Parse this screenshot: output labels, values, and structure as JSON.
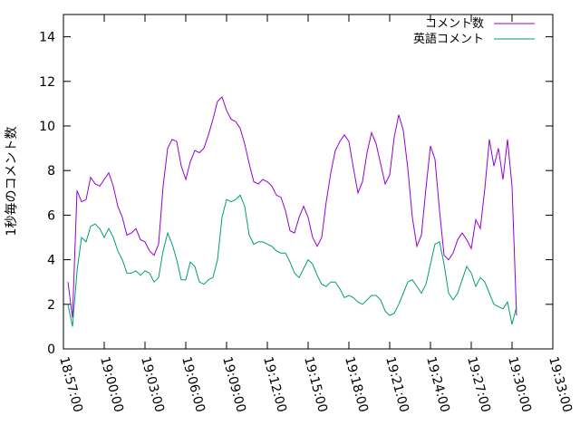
{
  "chart_data": {
    "type": "line",
    "ylabel": "1秒毎のコメント数",
    "xlabel": "",
    "ylim": [
      0,
      15
    ],
    "xlim": [
      "18:57:00",
      "19:33:00"
    ],
    "yticks": [
      0,
      2,
      4,
      6,
      8,
      10,
      12,
      14
    ],
    "xticks": [
      "18:57:00",
      "19:00:00",
      "19:03:00",
      "19:06:00",
      "19:09:00",
      "19:12:00",
      "19:15:00",
      "19:18:00",
      "19:21:00",
      "19:24:00",
      "19:27:00",
      "19:30:00",
      "19:33:00"
    ],
    "legend_position": "top-right",
    "grid": false,
    "series": [
      {
        "name": "コメント数",
        "color": "#9400d3",
        "points": [
          [
            "18:57:20",
            3.0
          ],
          [
            "18:57:40",
            1.4
          ],
          [
            "18:58:00",
            7.1
          ],
          [
            "18:58:20",
            6.6
          ],
          [
            "18:58:40",
            6.7
          ],
          [
            "18:59:00",
            7.7
          ],
          [
            "18:59:20",
            7.4
          ],
          [
            "18:59:40",
            7.3
          ],
          [
            "19:00:00",
            7.6
          ],
          [
            "19:00:20",
            7.9
          ],
          [
            "19:00:40",
            7.3
          ],
          [
            "19:01:00",
            6.4
          ],
          [
            "19:01:20",
            5.9
          ],
          [
            "19:01:40",
            5.1
          ],
          [
            "19:02:00",
            5.2
          ],
          [
            "19:02:20",
            5.4
          ],
          [
            "19:02:40",
            4.9
          ],
          [
            "19:03:00",
            4.8
          ],
          [
            "19:03:20",
            4.4
          ],
          [
            "19:03:40",
            4.2
          ],
          [
            "19:04:00",
            4.7
          ],
          [
            "19:04:20",
            7.3
          ],
          [
            "19:04:40",
            9.0
          ],
          [
            "19:05:00",
            9.4
          ],
          [
            "19:05:20",
            9.3
          ],
          [
            "19:05:40",
            8.2
          ],
          [
            "19:06:00",
            7.6
          ],
          [
            "19:06:20",
            8.4
          ],
          [
            "19:06:40",
            8.9
          ],
          [
            "19:07:00",
            8.8
          ],
          [
            "19:07:20",
            9.0
          ],
          [
            "19:07:40",
            9.6
          ],
          [
            "19:08:00",
            10.3
          ],
          [
            "19:08:20",
            11.1
          ],
          [
            "19:08:40",
            11.3
          ],
          [
            "19:09:00",
            10.7
          ],
          [
            "19:09:20",
            10.3
          ],
          [
            "19:09:40",
            10.2
          ],
          [
            "19:10:00",
            9.9
          ],
          [
            "19:10:20",
            9.2
          ],
          [
            "19:10:40",
            8.3
          ],
          [
            "19:11:00",
            7.5
          ],
          [
            "19:11:20",
            7.4
          ],
          [
            "19:11:40",
            7.6
          ],
          [
            "19:12:00",
            7.5
          ],
          [
            "19:12:20",
            7.3
          ],
          [
            "19:12:40",
            6.9
          ],
          [
            "19:13:00",
            6.8
          ],
          [
            "19:13:20",
            6.2
          ],
          [
            "19:13:40",
            5.3
          ],
          [
            "19:14:00",
            5.2
          ],
          [
            "19:14:20",
            5.9
          ],
          [
            "19:14:40",
            6.4
          ],
          [
            "19:15:00",
            5.9
          ],
          [
            "19:15:20",
            5.0
          ],
          [
            "19:15:40",
            4.6
          ],
          [
            "19:16:00",
            5.0
          ],
          [
            "19:16:20",
            6.6
          ],
          [
            "19:16:40",
            7.9
          ],
          [
            "19:17:00",
            8.9
          ],
          [
            "19:17:20",
            9.3
          ],
          [
            "19:17:40",
            9.6
          ],
          [
            "19:18:00",
            9.3
          ],
          [
            "19:18:20",
            8.1
          ],
          [
            "19:18:40",
            7.0
          ],
          [
            "19:19:00",
            7.5
          ],
          [
            "19:19:20",
            8.8
          ],
          [
            "19:19:40",
            9.7
          ],
          [
            "19:20:00",
            9.2
          ],
          [
            "19:20:20",
            8.3
          ],
          [
            "19:20:40",
            7.4
          ],
          [
            "19:21:00",
            7.8
          ],
          [
            "19:21:20",
            9.5
          ],
          [
            "19:21:40",
            10.5
          ],
          [
            "19:22:00",
            9.8
          ],
          [
            "19:22:20",
            8.1
          ],
          [
            "19:22:40",
            5.9
          ],
          [
            "19:23:00",
            4.6
          ],
          [
            "19:23:20",
            5.1
          ],
          [
            "19:23:40",
            7.2
          ],
          [
            "19:24:00",
            9.1
          ],
          [
            "19:24:20",
            8.5
          ],
          [
            "19:24:40",
            6.2
          ],
          [
            "19:25:00",
            4.2
          ],
          [
            "19:25:20",
            4.0
          ],
          [
            "19:25:40",
            4.3
          ],
          [
            "19:26:00",
            4.9
          ],
          [
            "19:26:20",
            5.2
          ],
          [
            "19:26:40",
            4.9
          ],
          [
            "19:27:00",
            4.5
          ],
          [
            "19:27:20",
            5.8
          ],
          [
            "19:27:40",
            5.4
          ],
          [
            "19:28:00",
            7.2
          ],
          [
            "19:28:20",
            9.4
          ],
          [
            "19:28:40",
            8.2
          ],
          [
            "19:29:00",
            9.0
          ],
          [
            "19:29:20",
            7.6
          ],
          [
            "19:29:40",
            9.4
          ],
          [
            "19:30:00",
            7.3
          ],
          [
            "19:30:20",
            1.5
          ]
        ]
      },
      {
        "name": "英語コメント",
        "color": "#009e73",
        "points": [
          [
            "18:57:20",
            2.0
          ],
          [
            "18:57:40",
            1.0
          ],
          [
            "18:58:00",
            3.5
          ],
          [
            "18:58:20",
            5.0
          ],
          [
            "18:58:40",
            4.8
          ],
          [
            "18:59:00",
            5.5
          ],
          [
            "18:59:20",
            5.6
          ],
          [
            "18:59:40",
            5.4
          ],
          [
            "19:00:00",
            5.0
          ],
          [
            "19:00:20",
            5.4
          ],
          [
            "19:00:40",
            5.0
          ],
          [
            "19:01:00",
            4.4
          ],
          [
            "19:01:20",
            4.0
          ],
          [
            "19:01:40",
            3.4
          ],
          [
            "19:02:00",
            3.4
          ],
          [
            "19:02:20",
            3.5
          ],
          [
            "19:02:40",
            3.3
          ],
          [
            "19:03:00",
            3.5
          ],
          [
            "19:03:20",
            3.4
          ],
          [
            "19:03:40",
            3.0
          ],
          [
            "19:04:00",
            3.2
          ],
          [
            "19:04:20",
            4.4
          ],
          [
            "19:04:40",
            5.2
          ],
          [
            "19:05:00",
            4.7
          ],
          [
            "19:05:20",
            4.0
          ],
          [
            "19:05:40",
            3.1
          ],
          [
            "19:06:00",
            3.1
          ],
          [
            "19:06:20",
            3.9
          ],
          [
            "19:06:40",
            3.7
          ],
          [
            "19:07:00",
            3.0
          ],
          [
            "19:07:20",
            2.9
          ],
          [
            "19:07:40",
            3.1
          ],
          [
            "19:08:00",
            3.2
          ],
          [
            "19:08:20",
            4.0
          ],
          [
            "19:08:40",
            5.9
          ],
          [
            "19:09:00",
            6.7
          ],
          [
            "19:09:20",
            6.6
          ],
          [
            "19:09:40",
            6.7
          ],
          [
            "19:10:00",
            6.9
          ],
          [
            "19:10:20",
            6.4
          ],
          [
            "19:10:40",
            5.1
          ],
          [
            "19:11:00",
            4.7
          ],
          [
            "19:11:20",
            4.8
          ],
          [
            "19:11:40",
            4.8
          ],
          [
            "19:12:00",
            4.7
          ],
          [
            "19:12:20",
            4.6
          ],
          [
            "19:12:40",
            4.4
          ],
          [
            "19:13:00",
            4.3
          ],
          [
            "19:13:20",
            4.3
          ],
          [
            "19:13:40",
            3.9
          ],
          [
            "19:14:00",
            3.4
          ],
          [
            "19:14:20",
            3.2
          ],
          [
            "19:14:40",
            3.6
          ],
          [
            "19:15:00",
            4.0
          ],
          [
            "19:15:20",
            3.8
          ],
          [
            "19:15:40",
            3.3
          ],
          [
            "19:16:00",
            2.9
          ],
          [
            "19:16:20",
            2.8
          ],
          [
            "19:16:40",
            3.0
          ],
          [
            "19:17:00",
            3.0
          ],
          [
            "19:17:20",
            2.7
          ],
          [
            "19:17:40",
            2.3
          ],
          [
            "19:18:00",
            2.4
          ],
          [
            "19:18:20",
            2.3
          ],
          [
            "19:18:40",
            2.1
          ],
          [
            "19:19:00",
            2.0
          ],
          [
            "19:19:20",
            2.2
          ],
          [
            "19:19:40",
            2.4
          ],
          [
            "19:20:00",
            2.4
          ],
          [
            "19:20:20",
            2.2
          ],
          [
            "19:20:40",
            1.7
          ],
          [
            "19:21:00",
            1.5
          ],
          [
            "19:21:20",
            1.6
          ],
          [
            "19:21:40",
            2.0
          ],
          [
            "19:22:00",
            2.5
          ],
          [
            "19:22:20",
            3.0
          ],
          [
            "19:22:40",
            3.1
          ],
          [
            "19:23:00",
            2.8
          ],
          [
            "19:23:20",
            2.5
          ],
          [
            "19:23:40",
            2.9
          ],
          [
            "19:24:00",
            3.8
          ],
          [
            "19:24:20",
            4.7
          ],
          [
            "19:24:40",
            4.8
          ],
          [
            "19:25:00",
            3.8
          ],
          [
            "19:25:20",
            2.5
          ],
          [
            "19:25:40",
            2.2
          ],
          [
            "19:26:00",
            2.5
          ],
          [
            "19:26:20",
            3.1
          ],
          [
            "19:26:40",
            3.7
          ],
          [
            "19:27:00",
            3.4
          ],
          [
            "19:27:20",
            2.8
          ],
          [
            "19:27:40",
            3.2
          ],
          [
            "19:28:00",
            3.0
          ],
          [
            "19:28:20",
            2.5
          ],
          [
            "19:28:40",
            2.0
          ],
          [
            "19:29:00",
            1.9
          ],
          [
            "19:29:20",
            1.8
          ],
          [
            "19:29:40",
            2.1
          ],
          [
            "19:30:00",
            1.1
          ],
          [
            "19:30:20",
            1.9
          ]
        ]
      }
    ]
  }
}
